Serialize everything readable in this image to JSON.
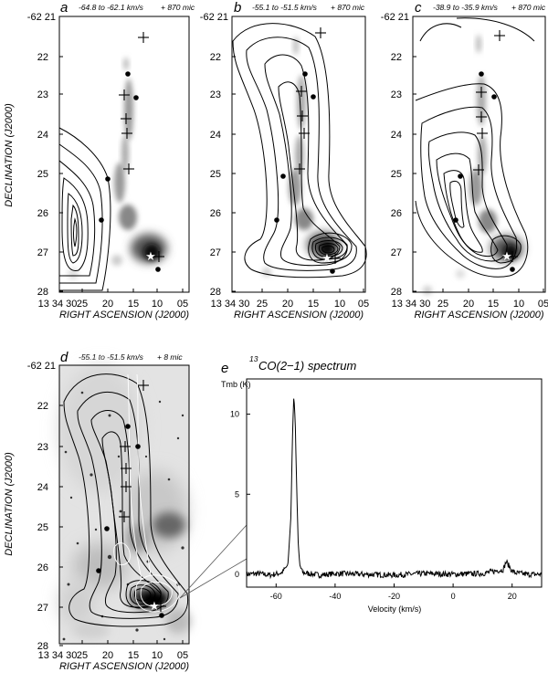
{
  "figure": {
    "dec_top_label": "-62 21",
    "ra_first_label": "13 34 30",
    "ra_axis_label": "RIGHT ASCENSION (J2000)",
    "dec_axis_label": "DECLINATION (J2000)",
    "ra_ticks": [
      "25",
      "20",
      "15",
      "10",
      "05"
    ],
    "dec_ticks": [
      "22",
      "23",
      "24",
      "25",
      "26",
      "27",
      "28"
    ],
    "marker_cross": "+",
    "marker_dot": "●",
    "marker_star": "★"
  },
  "panels": [
    {
      "id": "a",
      "letter": "a",
      "range": "-64.8 to -62.1 km/s",
      "suffix": "+ 870 mic"
    },
    {
      "id": "b",
      "letter": "b",
      "range": "-55.1 to -51.5 km/s",
      "suffix": "+ 870 mic"
    },
    {
      "id": "c",
      "letter": "c",
      "range": "-38.9 to -35.9 km/s",
      "suffix": "+ 870 mic"
    },
    {
      "id": "d",
      "letter": "d",
      "range": "-55.1 to -51.5 km/s",
      "suffix": "+ 8 mic"
    }
  ],
  "spectrum": {
    "letter": "e",
    "title_sup": "13",
    "title_rest": "CO(2−1) spectrum"
  },
  "chart_data": {
    "type": "line",
    "title": "13CO(2-1) spectrum",
    "xlabel": "Velocity (km/s)",
    "ylabel": "Tmb (K)",
    "xlim": [
      -70,
      30
    ],
    "ylim": [
      -0.8,
      12.2
    ],
    "xticks": [
      -60,
      -40,
      -20,
      0,
      20
    ],
    "yticks": [
      0,
      5,
      10
    ],
    "series": [
      {
        "x": [
          -70,
          -66,
          -62,
          -58,
          -56,
          -55,
          -54.5,
          -54,
          -53.5,
          -53,
          -52.5,
          -52,
          -51,
          -49,
          -45,
          -40,
          -30,
          -20,
          -10,
          0,
          10,
          17,
          18,
          19,
          20,
          21,
          25,
          30
        ],
        "y": [
          0,
          0.05,
          -0.05,
          0.1,
          0.6,
          3.5,
          8.2,
          11.2,
          9.5,
          5.2,
          2.0,
          0.6,
          0.1,
          0.05,
          -0.05,
          0.05,
          0,
          -0.05,
          0.05,
          0,
          0.05,
          0.3,
          0.8,
          0.5,
          0.2,
          0.1,
          0,
          0
        ]
      }
    ]
  }
}
